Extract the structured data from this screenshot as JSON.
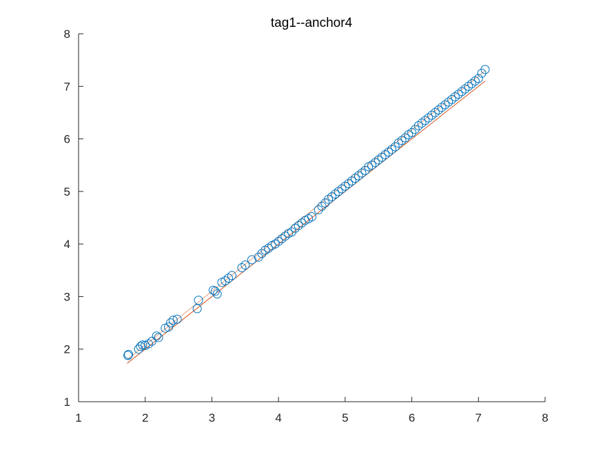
{
  "chart_data": {
    "type": "scatter",
    "title": "tag1--anchor4",
    "xlabel": "",
    "ylabel": "",
    "xlim": [
      1,
      8
    ],
    "ylim": [
      1,
      8
    ],
    "xticks": [
      "1",
      "2",
      "3",
      "4",
      "5",
      "6",
      "7",
      "8"
    ],
    "yticks": [
      "1",
      "2",
      "3",
      "4",
      "5",
      "6",
      "7",
      "8"
    ],
    "grid": false,
    "legend": "none",
    "colors": {
      "points": "#0072BD",
      "reference_line": "#D95319",
      "axes": "#262626"
    },
    "reference_line": {
      "x": [
        1.73,
        7.1
      ],
      "y": [
        1.73,
        7.1
      ]
    },
    "fit_line": {
      "x": [
        1.73,
        7.1
      ],
      "y": [
        1.8,
        7.3
      ]
    },
    "points": {
      "x": [
        1.74,
        1.75,
        1.9,
        1.93,
        1.96,
        2.0,
        2.05,
        2.1,
        2.17,
        2.2,
        2.3,
        2.35,
        2.38,
        2.42,
        2.48,
        2.78,
        2.8,
        3.02,
        3.05,
        3.08,
        3.15,
        3.2,
        3.25,
        3.3,
        3.45,
        3.5,
        3.6,
        3.7,
        3.75,
        3.8,
        3.85,
        3.9,
        3.95,
        4.0,
        4.05,
        4.1,
        4.15,
        4.2,
        4.25,
        4.3,
        4.35,
        4.4,
        4.45,
        4.5,
        4.6,
        4.65,
        4.7,
        4.75,
        4.8,
        4.85,
        4.9,
        4.95,
        5.0,
        5.05,
        5.1,
        5.15,
        5.2,
        5.25,
        5.3,
        5.35,
        5.4,
        5.45,
        5.5,
        5.55,
        5.6,
        5.65,
        5.7,
        5.75,
        5.8,
        5.85,
        5.9,
        5.95,
        6.0,
        6.05,
        6.1,
        6.15,
        6.2,
        6.25,
        6.3,
        6.35,
        6.4,
        6.45,
        6.5,
        6.55,
        6.6,
        6.65,
        6.7,
        6.75,
        6.8,
        6.85,
        6.9,
        6.95,
        7.0,
        7.05,
        7.1
      ],
      "y": [
        1.88,
        1.9,
        2.0,
        2.05,
        2.08,
        2.07,
        2.1,
        2.15,
        2.25,
        2.22,
        2.4,
        2.42,
        2.5,
        2.55,
        2.57,
        2.77,
        2.93,
        3.12,
        3.1,
        3.05,
        3.27,
        3.3,
        3.35,
        3.4,
        3.55,
        3.6,
        3.7,
        3.75,
        3.82,
        3.88,
        3.92,
        3.97,
        4.0,
        4.05,
        4.1,
        4.15,
        4.2,
        4.23,
        4.3,
        4.35,
        4.4,
        4.45,
        4.48,
        4.52,
        4.65,
        4.72,
        4.78,
        4.85,
        4.9,
        4.95,
        5.0,
        5.05,
        5.1,
        5.15,
        5.2,
        5.25,
        5.3,
        5.35,
        5.4,
        5.47,
        5.5,
        5.55,
        5.6,
        5.65,
        5.7,
        5.75,
        5.8,
        5.85,
        5.92,
        5.97,
        6.02,
        6.08,
        6.12,
        6.18,
        6.25,
        6.3,
        6.35,
        6.4,
        6.45,
        6.5,
        6.55,
        6.6,
        6.65,
        6.7,
        6.75,
        6.8,
        6.85,
        6.9,
        6.95,
        7.0,
        7.05,
        7.1,
        7.15,
        7.25,
        7.32
      ]
    }
  }
}
